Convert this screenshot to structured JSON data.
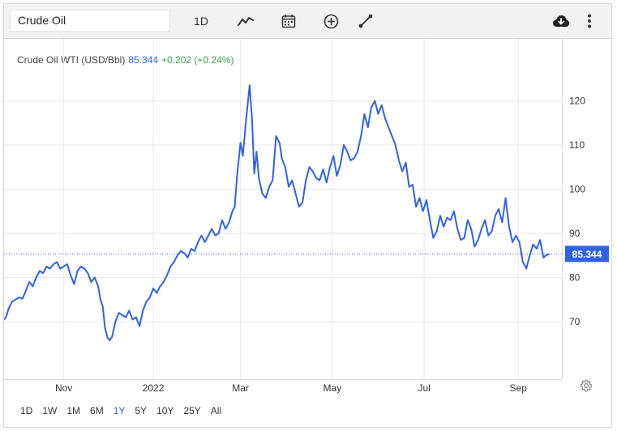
{
  "toolbar": {
    "search_value": "Crude Oil",
    "interval_label": "1D",
    "icons": [
      "line-chart-icon",
      "calendar-icon",
      "add-circle-icon",
      "draw-line-icon",
      "download-cloud-icon",
      "more-vertical-icon"
    ]
  },
  "legend": {
    "name": "Crude Oil WTI (USD/Bbl)",
    "price": "85.344",
    "change": "+0.202 (+0.24%)"
  },
  "range_buttons": [
    {
      "label": "1D",
      "active": false
    },
    {
      "label": "1W",
      "active": false
    },
    {
      "label": "1M",
      "active": false
    },
    {
      "label": "6M",
      "active": false
    },
    {
      "label": "1Y",
      "active": true
    },
    {
      "label": "5Y",
      "active": false
    },
    {
      "label": "10Y",
      "active": false
    },
    {
      "label": "25Y",
      "active": false
    },
    {
      "label": "All",
      "active": false
    }
  ],
  "colors": {
    "line": "#2f62e6",
    "price_tag": "#2f62e6",
    "grid": "#e9e9e9",
    "positive": "#3aa545"
  },
  "chart_data": {
    "type": "line",
    "title": "",
    "ylim": [
      57,
      134
    ],
    "y_ticks": [
      70,
      80,
      90,
      100,
      110,
      120
    ],
    "x_ticks": [
      {
        "label": "Nov",
        "x": 2.6
      },
      {
        "label": "2022",
        "x": 6.5
      },
      {
        "label": "Mar",
        "x": 10.3
      },
      {
        "label": "May",
        "x": 14.3
      },
      {
        "label": "Jul",
        "x": 18.3
      },
      {
        "label": "Sep",
        "x": 22.4
      }
    ],
    "xlim": [
      0,
      24.3
    ],
    "last_price_label": "85.344",
    "last_price": 85.344,
    "grid": true,
    "series": [
      {
        "points": [
          [
            0.0,
            70.5
          ],
          [
            0.1,
            71.2
          ],
          [
            0.2,
            73.0
          ],
          [
            0.35,
            74.5
          ],
          [
            0.5,
            75.0
          ],
          [
            0.65,
            75.5
          ],
          [
            0.8,
            75.2
          ],
          [
            0.95,
            77.0
          ],
          [
            1.1,
            79.0
          ],
          [
            1.25,
            78.0
          ],
          [
            1.4,
            80.0
          ],
          [
            1.55,
            81.5
          ],
          [
            1.7,
            81.0
          ],
          [
            1.85,
            82.5
          ],
          [
            2.0,
            82.0
          ],
          [
            2.15,
            83.0
          ],
          [
            2.3,
            83.5
          ],
          [
            2.45,
            82.0
          ],
          [
            2.6,
            82.5
          ],
          [
            2.75,
            83.0
          ],
          [
            2.9,
            80.5
          ],
          [
            3.05,
            78.5
          ],
          [
            3.2,
            81.5
          ],
          [
            3.35,
            82.5
          ],
          [
            3.5,
            82.0
          ],
          [
            3.65,
            81.0
          ],
          [
            3.8,
            79.0
          ],
          [
            3.95,
            80.0
          ],
          [
            4.1,
            78.0
          ],
          [
            4.2,
            75.0
          ],
          [
            4.3,
            73.5
          ],
          [
            4.4,
            68.5
          ],
          [
            4.5,
            66.5
          ],
          [
            4.6,
            65.8
          ],
          [
            4.7,
            66.5
          ],
          [
            4.85,
            70.0
          ],
          [
            5.0,
            72.0
          ],
          [
            5.15,
            71.5
          ],
          [
            5.3,
            71.0
          ],
          [
            5.45,
            72.5
          ],
          [
            5.6,
            70.5
          ],
          [
            5.75,
            71.0
          ],
          [
            5.9,
            69.0
          ],
          [
            6.05,
            72.5
          ],
          [
            6.2,
            74.5
          ],
          [
            6.35,
            75.5
          ],
          [
            6.5,
            77.5
          ],
          [
            6.65,
            76.5
          ],
          [
            6.8,
            78.0
          ],
          [
            6.95,
            79.0
          ],
          [
            7.1,
            80.5
          ],
          [
            7.25,
            82.5
          ],
          [
            7.4,
            83.5
          ],
          [
            7.55,
            85.0
          ],
          [
            7.7,
            86.0
          ],
          [
            7.85,
            85.5
          ],
          [
            8.0,
            84.5
          ],
          [
            8.15,
            86.5
          ],
          [
            8.3,
            86.0
          ],
          [
            8.45,
            88.0
          ],
          [
            8.6,
            89.5
          ],
          [
            8.75,
            88.0
          ],
          [
            8.9,
            89.5
          ],
          [
            9.05,
            91.0
          ],
          [
            9.2,
            89.5
          ],
          [
            9.35,
            90.0
          ],
          [
            9.5,
            93.0
          ],
          [
            9.65,
            91.0
          ],
          [
            9.8,
            92.5
          ],
          [
            9.95,
            95.0
          ],
          [
            10.05,
            96.0
          ],
          [
            10.15,
            103.0
          ],
          [
            10.3,
            110.5
          ],
          [
            10.4,
            107.5
          ],
          [
            10.55,
            116.0
          ],
          [
            10.7,
            123.5
          ],
          [
            10.8,
            116.0
          ],
          [
            10.9,
            103.5
          ],
          [
            11.0,
            108.5
          ],
          [
            11.1,
            102.5
          ],
          [
            11.25,
            99.0
          ],
          [
            11.4,
            98.0
          ],
          [
            11.55,
            100.5
          ],
          [
            11.7,
            102.0
          ],
          [
            11.85,
            112.0
          ],
          [
            12.0,
            110.5
          ],
          [
            12.1,
            107.0
          ],
          [
            12.25,
            105.0
          ],
          [
            12.4,
            100.5
          ],
          [
            12.55,
            102.0
          ],
          [
            12.7,
            99.0
          ],
          [
            12.85,
            96.0
          ],
          [
            13.0,
            97.0
          ],
          [
            13.15,
            102.0
          ],
          [
            13.3,
            105.0
          ],
          [
            13.45,
            104.0
          ],
          [
            13.6,
            102.5
          ],
          [
            13.75,
            102.0
          ],
          [
            13.9,
            104.5
          ],
          [
            14.05,
            101.5
          ],
          [
            14.2,
            105.0
          ],
          [
            14.35,
            107.5
          ],
          [
            14.5,
            103.0
          ],
          [
            14.65,
            105.5
          ],
          [
            14.8,
            110.0
          ],
          [
            14.95,
            108.5
          ],
          [
            15.1,
            106.5
          ],
          [
            15.25,
            107.0
          ],
          [
            15.4,
            108.5
          ],
          [
            15.55,
            112.0
          ],
          [
            15.7,
            117.0
          ],
          [
            15.85,
            114.0
          ],
          [
            16.0,
            118.5
          ],
          [
            16.15,
            120.0
          ],
          [
            16.3,
            117.0
          ],
          [
            16.45,
            119.0
          ],
          [
            16.6,
            116.0
          ],
          [
            16.75,
            114.0
          ],
          [
            16.9,
            112.0
          ],
          [
            17.05,
            110.0
          ],
          [
            17.2,
            106.5
          ],
          [
            17.35,
            104.0
          ],
          [
            17.5,
            106.0
          ],
          [
            17.65,
            100.5
          ],
          [
            17.8,
            101.0
          ],
          [
            17.95,
            96.0
          ],
          [
            18.1,
            98.0
          ],
          [
            18.25,
            95.0
          ],
          [
            18.4,
            97.5
          ],
          [
            18.55,
            93.0
          ],
          [
            18.7,
            89.0
          ],
          [
            18.85,
            90.5
          ],
          [
            19.0,
            94.0
          ],
          [
            19.15,
            91.5
          ],
          [
            19.3,
            93.5
          ],
          [
            19.45,
            93.0
          ],
          [
            19.6,
            95.0
          ],
          [
            19.75,
            91.0
          ],
          [
            19.9,
            88.5
          ],
          [
            20.05,
            89.0
          ],
          [
            20.2,
            93.0
          ],
          [
            20.35,
            91.0
          ],
          [
            20.5,
            87.0
          ],
          [
            20.65,
            88.5
          ],
          [
            20.8,
            91.0
          ],
          [
            20.95,
            93.0
          ],
          [
            21.1,
            89.5
          ],
          [
            21.25,
            90.5
          ],
          [
            21.4,
            94.0
          ],
          [
            21.55,
            95.5
          ],
          [
            21.7,
            92.5
          ],
          [
            21.85,
            98.0
          ],
          [
            22.0,
            91.5
          ],
          [
            22.15,
            88.0
          ],
          [
            22.3,
            89.5
          ],
          [
            22.45,
            88.0
          ],
          [
            22.6,
            83.5
          ],
          [
            22.75,
            82.0
          ],
          [
            22.9,
            85.0
          ],
          [
            23.05,
            87.5
          ],
          [
            23.2,
            86.5
          ],
          [
            23.35,
            88.5
          ],
          [
            23.5,
            84.5
          ],
          [
            23.6,
            85.0
          ],
          [
            23.75,
            85.344
          ]
        ]
      }
    ]
  }
}
